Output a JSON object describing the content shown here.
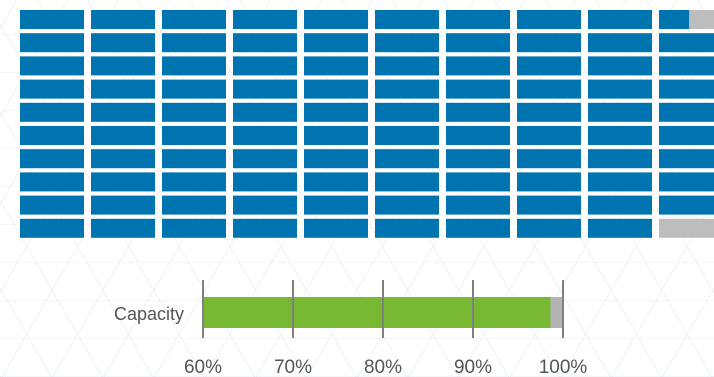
{
  "chart_data": [
    {
      "type": "waffle",
      "grid": {
        "rows": 10,
        "cols": 10
      },
      "filled_units": 99,
      "total_units": 100,
      "colors": {
        "filled": "#0073b1",
        "empty": "#bdbdbd"
      },
      "title": "",
      "legend": "none"
    },
    {
      "type": "bullet",
      "category": "Capacity",
      "value": 98.6,
      "target": 100,
      "xlim": [
        60,
        100
      ],
      "ticks": [
        "60%",
        "70%",
        "80%",
        "90%",
        "100%"
      ],
      "tick_values": [
        60,
        70,
        80,
        90,
        100
      ],
      "colors": {
        "bar": "#79b832",
        "remainder": "#b3b3b3",
        "tick": "#7f7f7f"
      },
      "grid": true,
      "title": ""
    }
  ]
}
